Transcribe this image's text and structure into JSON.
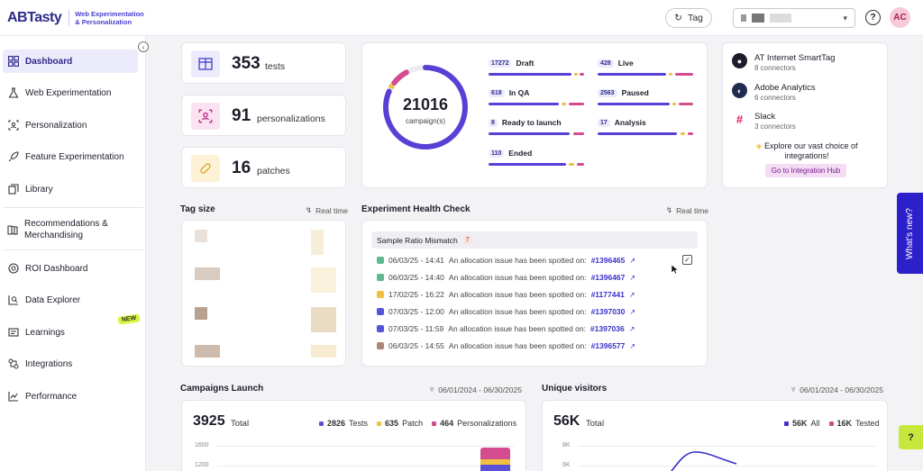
{
  "header": {
    "logo": "ABTasty",
    "logo_sub": "Web Experimentation & Personalization",
    "tag_button": "Tag",
    "avatar_initials": "AC"
  },
  "sidebar": {
    "items": [
      {
        "label": "Dashboard",
        "icon": "dashboard-icon",
        "active": true
      },
      {
        "label": "Web Experimentation",
        "icon": "flask-icon"
      },
      {
        "label": "Personalization",
        "icon": "target-user-icon"
      },
      {
        "label": "Feature Experimentation",
        "icon": "rocket-icon"
      },
      {
        "label": "Library",
        "icon": "library-icon"
      },
      {
        "label": "Recommendations & Merchandising",
        "icon": "book-icon"
      },
      {
        "label": "ROI Dashboard",
        "icon": "roi-icon"
      },
      {
        "label": "Data Explorer",
        "icon": "search-chart-icon"
      },
      {
        "label": "Learnings",
        "icon": "learnings-icon"
      },
      {
        "label": "Integrations",
        "icon": "integrations-icon"
      },
      {
        "label": "Performance",
        "icon": "performance-icon"
      }
    ],
    "new_badge": "NEW"
  },
  "stats": {
    "tests": {
      "value": "353",
      "label": "tests"
    },
    "personalizations": {
      "value": "91",
      "label": "personalizations"
    },
    "patches": {
      "value": "16",
      "label": "patches"
    }
  },
  "campaigns": {
    "total": "21016",
    "total_label": "campaign(s)",
    "statuses": [
      {
        "count": "17272",
        "label": "Draft"
      },
      {
        "count": "428",
        "label": "Live"
      },
      {
        "count": "618",
        "label": "In QA"
      },
      {
        "count": "2563",
        "label": "Paused"
      },
      {
        "count": "8",
        "label": "Ready to launch"
      },
      {
        "count": "17",
        "label": "Analysis"
      },
      {
        "count": "110",
        "label": "Ended"
      }
    ]
  },
  "integrations": {
    "items": [
      {
        "name": "AT Internet SmartTag",
        "sub": "8 connectors",
        "color": "#1d1d2b"
      },
      {
        "name": "Adobe Analytics",
        "sub": "6 connectors",
        "color": "#1f2c4d"
      },
      {
        "name": "Slack",
        "sub": "3 connectors",
        "color": "#e01e5a"
      }
    ],
    "promo": "Explore our vast choice of integrations!",
    "hub_button": "Go to Integration Hub"
  },
  "tag_size": {
    "title": "Tag size",
    "realtime": "Real time"
  },
  "health": {
    "title": "Experiment Health Check",
    "realtime": "Real time",
    "group": "Sample Ratio Mismatch",
    "group_count": "7",
    "alerts": [
      {
        "date": "06/03/25 - 14:41",
        "text": "An allocation issue has been spotted on:",
        "id": "#1396465",
        "color": "#5fb88f"
      },
      {
        "date": "06/03/25 - 14:40",
        "text": "An allocation issue has been spotted on:",
        "id": "#1396467",
        "color": "#5fb88f"
      },
      {
        "date": "17/02/25 - 16:22",
        "text": "An allocation issue has been spotted on:",
        "id": "#1177441",
        "color": "#f0c040"
      },
      {
        "date": "07/03/25 - 12:00",
        "text": "An allocation issue has been spotted on:",
        "id": "#1397030",
        "color": "#5a52d6"
      },
      {
        "date": "07/03/25 - 11:59",
        "text": "An allocation issue has been spotted on:",
        "id": "#1397036",
        "color": "#5a52d6"
      },
      {
        "date": "06/03/25 - 14:55",
        "text": "An allocation issue has been spotted on:",
        "id": "#1396577",
        "color": "#a9887a"
      }
    ]
  },
  "campaigns_launch": {
    "title": "Campaigns Launch",
    "date_range": "06/01/2024 - 06/30/2025",
    "total": "3925",
    "total_label": "Total",
    "legend": [
      {
        "value": "2826",
        "label": "Tests",
        "color": "#5a52d6"
      },
      {
        "value": "635",
        "label": "Patch",
        "color": "#f0c040"
      },
      {
        "value": "464",
        "label": "Personalizations",
        "color": "#d24c8f"
      }
    ],
    "y_ticks": [
      "1600",
      "1200"
    ]
  },
  "unique_visitors": {
    "title": "Unique visitors",
    "date_range": "06/01/2024 - 06/30/2025",
    "total": "56K",
    "total_label": "Total",
    "legend": [
      {
        "value": "56K",
        "label": "All",
        "color": "#3b32c8"
      },
      {
        "value": "16K",
        "label": "Tested",
        "color": "#d24c8f"
      }
    ],
    "y_ticks": [
      "8K",
      "6K"
    ]
  },
  "floating": {
    "whats_new": "What's new?",
    "help": "?"
  }
}
